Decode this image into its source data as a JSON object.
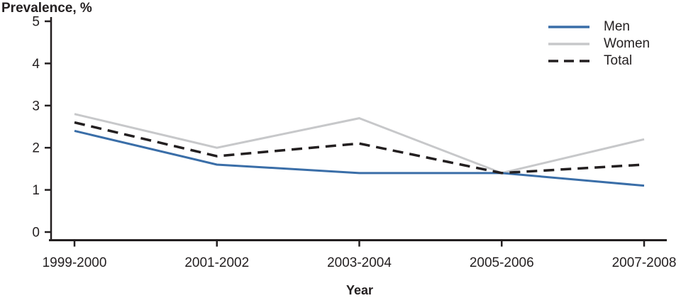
{
  "title": "Prevalence, %",
  "x_axis_label": "Year",
  "colors": {
    "men": "#3A6EA8",
    "women": "#C7C8CA",
    "total": "#231F20",
    "axis": "#231F20",
    "text": "#231F20"
  },
  "chart_data": {
    "type": "line",
    "title": "Prevalence, %",
    "xlabel": "Year",
    "ylabel": "Prevalence, %",
    "categories": [
      "1999-2000",
      "2001-2002",
      "2003-2004",
      "2005-2006",
      "2007-2008"
    ],
    "series": [
      {
        "name": "Men",
        "values": [
          2.4,
          1.6,
          1.4,
          1.4,
          1.1
        ],
        "color": "#3A6EA8",
        "style": "solid"
      },
      {
        "name": "Women",
        "values": [
          2.8,
          2.0,
          2.7,
          1.4,
          2.2
        ],
        "color": "#C7C8CA",
        "style": "solid"
      },
      {
        "name": "Total",
        "values": [
          2.6,
          1.8,
          2.1,
          1.4,
          1.6
        ],
        "color": "#231F20",
        "style": "dashed"
      }
    ],
    "ylim": [
      0,
      5
    ],
    "yticks": [
      0,
      1,
      2,
      3,
      4,
      5
    ],
    "grid": false,
    "legend_position": "top-right"
  }
}
